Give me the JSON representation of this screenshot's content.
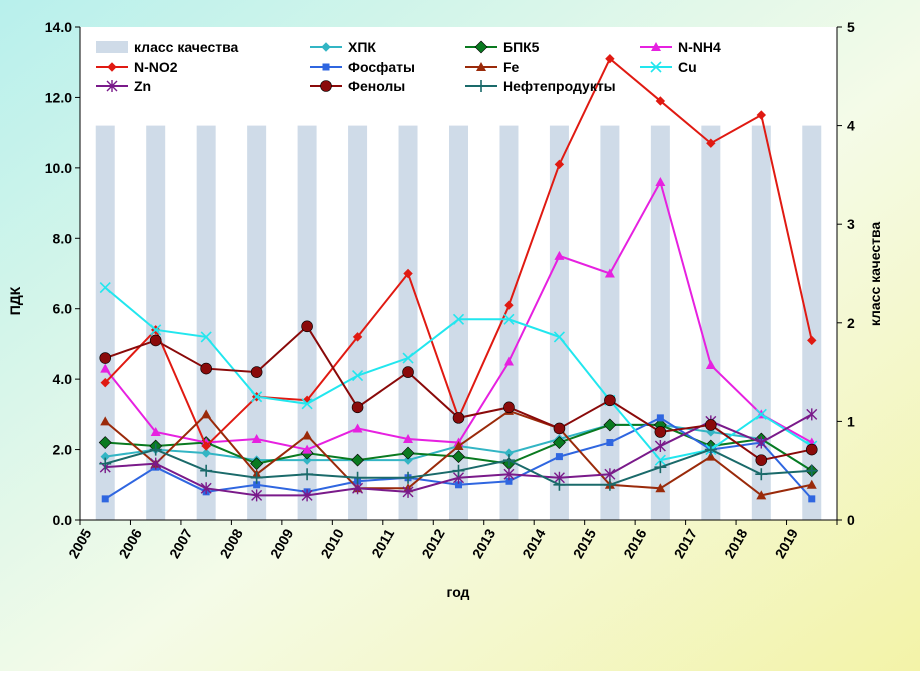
{
  "chart_data": {
    "type": "line",
    "title": "",
    "xlabel": "год",
    "ylabel": "ПДК",
    "y2label": "класс качества",
    "categories": [
      "2005",
      "2006",
      "2007",
      "2008",
      "2009",
      "2010",
      "2011",
      "2012",
      "2013",
      "2014",
      "2015",
      "2016",
      "2017",
      "2018",
      "2019"
    ],
    "ylim": [
      0,
      14
    ],
    "yticks": [
      "0.0",
      "2.0",
      "4.0",
      "6.0",
      "8.0",
      "10.0",
      "12.0",
      "14.0"
    ],
    "y2lim": [
      0,
      5
    ],
    "y2ticks": [
      "0",
      "1",
      "2",
      "3",
      "4",
      "5"
    ],
    "legend_position": "top",
    "bar_series": {
      "name": "класс качества",
      "axis": "y2",
      "color": "#cfdbe8",
      "values": [
        4,
        4,
        4,
        4,
        4,
        4,
        4,
        4,
        4,
        4,
        4,
        4,
        4,
        4,
        4
      ]
    },
    "series": [
      {
        "name": "ХПК",
        "color": "#33b5c4",
        "marker": "diamond-small",
        "values": [
          1.8,
          2.0,
          1.9,
          1.7,
          1.7,
          1.7,
          1.7,
          2.1,
          1.9,
          2.3,
          2.7,
          2.7,
          2.5,
          2.3,
          1.4
        ]
      },
      {
        "name": "БПК5",
        "color": "#0a7a20",
        "marker": "diamond",
        "values": [
          2.2,
          2.1,
          2.2,
          1.6,
          1.9,
          1.7,
          1.9,
          1.8,
          1.6,
          2.2,
          2.7,
          2.7,
          2.1,
          2.3,
          1.4
        ]
      },
      {
        "name": "N-NH4",
        "color": "#e621e0",
        "marker": "triangle",
        "values": [
          4.3,
          2.5,
          2.2,
          2.3,
          2.0,
          2.6,
          2.3,
          2.2,
          4.5,
          7.5,
          7.0,
          9.6,
          4.4,
          3.0,
          2.2
        ]
      },
      {
        "name": "N-NO2",
        "color": "#e01a12",
        "marker": "diamond-small",
        "values": [
          3.9,
          5.4,
          2.1,
          3.5,
          3.4,
          5.2,
          7.0,
          2.9,
          6.1,
          10.1,
          13.1,
          11.9,
          10.7,
          11.5,
          5.1
        ]
      },
      {
        "name": "Фосфаты",
        "color": "#2f66e0",
        "marker": "square",
        "values": [
          0.6,
          1.5,
          0.8,
          1.0,
          0.8,
          1.1,
          1.2,
          1.0,
          1.1,
          1.8,
          2.2,
          2.9,
          2.0,
          2.2,
          0.6
        ]
      },
      {
        "name": "Fe",
        "color": "#9a2a0a",
        "marker": "triangle",
        "values": [
          2.8,
          1.6,
          3.0,
          1.3,
          2.4,
          0.9,
          0.9,
          2.1,
          3.1,
          2.6,
          1.0,
          0.9,
          1.8,
          0.7,
          1.0
        ]
      },
      {
        "name": "Cu",
        "color": "#22e6ee",
        "marker": "x",
        "values": [
          6.6,
          5.4,
          5.2,
          3.5,
          3.3,
          4.1,
          4.6,
          5.7,
          5.7,
          5.2,
          3.4,
          1.7,
          2.0,
          3.0,
          2.1
        ]
      },
      {
        "name": "Zn",
        "color": "#7a1a8a",
        "marker": "star",
        "values": [
          1.5,
          1.6,
          0.9,
          0.7,
          0.7,
          0.9,
          0.8,
          1.2,
          1.3,
          1.2,
          1.3,
          2.1,
          2.8,
          2.2,
          3.0
        ]
      },
      {
        "name": "Фенолы",
        "color": "#8a0a0a",
        "marker": "circle",
        "values": [
          4.6,
          5.1,
          4.3,
          4.2,
          5.5,
          3.2,
          4.2,
          2.9,
          3.2,
          2.6,
          3.4,
          2.5,
          2.7,
          1.7,
          2.0
        ]
      },
      {
        "name": "Нефтепродукты",
        "color": "#1a6a6a",
        "marker": "plus",
        "values": [
          1.6,
          2.0,
          1.4,
          1.2,
          1.3,
          1.2,
          1.2,
          1.4,
          1.7,
          1.0,
          1.0,
          1.5,
          2.0,
          1.3,
          1.4
        ]
      }
    ]
  }
}
